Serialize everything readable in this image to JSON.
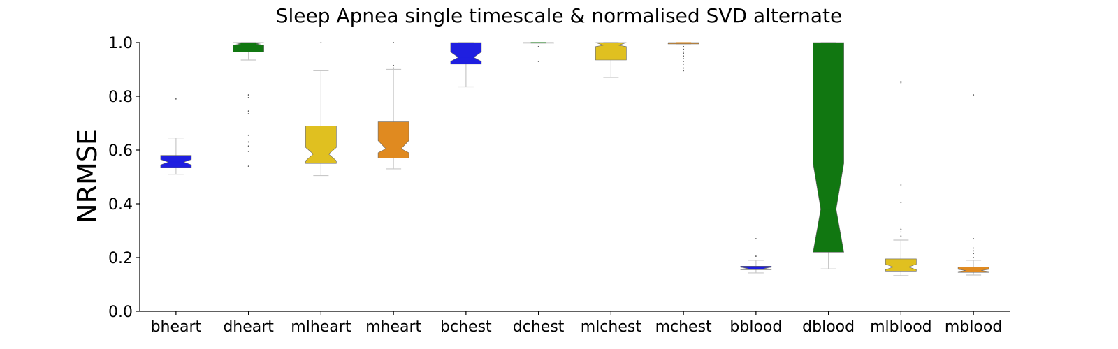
{
  "chart_data": {
    "type": "box",
    "title": "Sleep Apnea single timescale & normalised SVD alternate",
    "xlabel": "",
    "ylabel": "NRMSE",
    "ylim": [
      0,
      1.0
    ],
    "yticks": [
      "0.0",
      "0.2",
      "0.4",
      "0.6",
      "0.8",
      "1.0"
    ],
    "grid": false,
    "notched": true,
    "categories": [
      "bheart",
      "dheart",
      "mlheart",
      "mheart",
      "bchest",
      "dchest",
      "mlchest",
      "mchest",
      "bblood",
      "dblood",
      "mlblood",
      "mblood"
    ],
    "colors": [
      "#1f1fe0",
      "#117711",
      "#e0c020",
      "#e08a20",
      "#1f1fe0",
      "#117711",
      "#e0c020",
      "#e08a20",
      "#1f1fe0",
      "#117711",
      "#e0c020",
      "#e08a20"
    ],
    "boxes": [
      {
        "category": "bheart",
        "whislo": 0.51,
        "q1": 0.535,
        "med": 0.555,
        "q3": 0.58,
        "whishi": 0.645,
        "notch": [
          0.545,
          0.565
        ],
        "fliers": [
          0.79
        ]
      },
      {
        "category": "dheart",
        "whislo": 0.935,
        "q1": 0.965,
        "med": 0.995,
        "q3": 1.0,
        "whishi": 1.0,
        "notch": [
          0.99,
          1.0
        ],
        "fliers": [
          0.54,
          0.595,
          0.615,
          0.63,
          0.655,
          0.735,
          0.745,
          0.795,
          0.805
        ]
      },
      {
        "category": "mlheart",
        "whislo": 0.505,
        "q1": 0.55,
        "med": 0.585,
        "q3": 0.69,
        "whishi": 0.895,
        "notch": [
          0.56,
          0.61
        ],
        "fliers": [
          1.0
        ]
      },
      {
        "category": "mheart",
        "whislo": 0.53,
        "q1": 0.57,
        "med": 0.605,
        "q3": 0.705,
        "whishi": 0.9,
        "notch": [
          0.59,
          0.635
        ],
        "fliers": [
          0.905,
          0.915,
          1.0
        ]
      },
      {
        "category": "bchest",
        "whislo": 0.835,
        "q1": 0.92,
        "med": 0.945,
        "q3": 1.0,
        "whishi": 1.0,
        "notch": [
          0.93,
          0.965
        ],
        "fliers": []
      },
      {
        "category": "dchest",
        "whislo": 0.998,
        "q1": 0.998,
        "med": 1.0,
        "q3": 1.0,
        "whishi": 1.0,
        "notch": [
          0.999,
          1.0
        ],
        "fliers": [
          0.93,
          0.985
        ]
      },
      {
        "category": "mlchest",
        "whislo": 0.87,
        "q1": 0.935,
        "med": 0.99,
        "q3": 1.0,
        "whishi": 1.0,
        "notch": [
          0.985,
          1.0
        ],
        "fliers": []
      },
      {
        "category": "mchest",
        "whislo": 0.995,
        "q1": 0.995,
        "med": 1.0,
        "q3": 1.0,
        "whishi": 1.0,
        "notch": [
          0.998,
          1.0
        ],
        "fliers": [
          0.895,
          0.905,
          0.92,
          0.93,
          0.94,
          0.95,
          0.96,
          0.965,
          0.975,
          0.985
        ]
      },
      {
        "category": "bblood",
        "whislo": 0.143,
        "q1": 0.155,
        "med": 0.16,
        "q3": 0.168,
        "whishi": 0.19,
        "notch": [
          0.157,
          0.164
        ],
        "fliers": [
          0.205,
          0.27
        ]
      },
      {
        "category": "dblood",
        "whislo": 0.158,
        "q1": 0.22,
        "med": 0.38,
        "q3": 1.0,
        "whishi": 1.0,
        "notch": [
          0.21,
          0.55
        ],
        "fliers": []
      },
      {
        "category": "mlblood",
        "whislo": 0.133,
        "q1": 0.15,
        "med": 0.165,
        "q3": 0.195,
        "whishi": 0.265,
        "notch": [
          0.155,
          0.175
        ],
        "fliers": [
          0.28,
          0.295,
          0.305,
          0.31,
          0.405,
          0.47,
          0.85,
          0.855
        ]
      },
      {
        "category": "mblood",
        "whislo": 0.135,
        "q1": 0.145,
        "med": 0.152,
        "q3": 0.165,
        "whishi": 0.19,
        "notch": [
          0.148,
          0.156
        ],
        "fliers": [
          0.2,
          0.215,
          0.225,
          0.235,
          0.27,
          0.805
        ]
      }
    ]
  }
}
